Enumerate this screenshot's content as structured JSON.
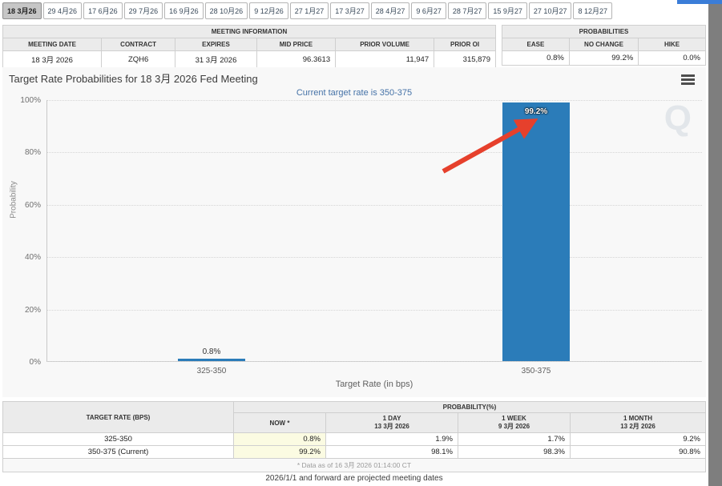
{
  "tabs": [
    {
      "label": "18 3月26",
      "active": true
    },
    {
      "label": "29 4月26",
      "active": false
    },
    {
      "label": "17 6月26",
      "active": false
    },
    {
      "label": "29 7月26",
      "active": false
    },
    {
      "label": "16 9月26",
      "active": false
    },
    {
      "label": "28 10月26",
      "active": false
    },
    {
      "label": "9 12月26",
      "active": false
    },
    {
      "label": "27 1月27",
      "active": false
    },
    {
      "label": "17 3月27",
      "active": false
    },
    {
      "label": "28 4月27",
      "active": false
    },
    {
      "label": "9 6月27",
      "active": false
    },
    {
      "label": "28 7月27",
      "active": false
    },
    {
      "label": "15 9月27",
      "active": false
    },
    {
      "label": "27 10月27",
      "active": false
    },
    {
      "label": "8 12月27",
      "active": false
    }
  ],
  "meeting_info": {
    "title": "MEETING INFORMATION",
    "headers": [
      "MEETING DATE",
      "CONTRACT",
      "EXPIRES",
      "MID PRICE",
      "PRIOR VOLUME",
      "PRIOR OI"
    ],
    "values": [
      "18 3月 2026",
      "ZQH6",
      "31 3月 2026",
      "96.3613",
      "11,947",
      "315,879"
    ]
  },
  "probabilities_summary": {
    "title": "PROBABILITIES",
    "headers": [
      "EASE",
      "NO CHANGE",
      "HIKE"
    ],
    "values": [
      "0.8%",
      "99.2%",
      "0.0%"
    ]
  },
  "chart_data": {
    "type": "bar",
    "title": "Target Rate Probabilities for 18 3月 2026 Fed Meeting",
    "subtitle": "Current target rate is 350-375",
    "categories": [
      "325-350",
      "350-375"
    ],
    "values": [
      0.8,
      99.2
    ],
    "data_labels": [
      "0.8%",
      "99.2%"
    ],
    "xlabel": "Target Rate (in bps)",
    "ylabel": "Probability",
    "ylim": [
      0,
      100
    ],
    "yticks": [
      "0%",
      "20%",
      "40%",
      "60%",
      "80%",
      "100%"
    ],
    "grid": "dotted horizontal gridlines every 20%",
    "legend": "none",
    "bar_color": "#2b7cb9",
    "annotations": [
      "red arrow pointing to the 99.2% bar label"
    ],
    "watermark": "Q"
  },
  "probability_table": {
    "corner_header": "TARGET RATE (BPS)",
    "group_header": "PROBABILITY(%)",
    "columns": [
      {
        "title": "NOW *",
        "date": ""
      },
      {
        "title": "1 DAY",
        "date": "13 3月 2026"
      },
      {
        "title": "1 WEEK",
        "date": "9 3月 2026"
      },
      {
        "title": "1 MONTH",
        "date": "13 2月 2026"
      }
    ],
    "rows": [
      {
        "target_rate": "325-350",
        "now": "0.8%",
        "one_day": "1.9%",
        "one_week": "1.7%",
        "one_month": "9.2%"
      },
      {
        "target_rate": "350-375 (Current)",
        "now": "99.2%",
        "one_day": "98.1%",
        "one_week": "98.3%",
        "one_month": "90.8%"
      }
    ],
    "footnote": "* Data as of 16 3月 2026 01:14:00 CT"
  },
  "footer_note": "2026/1/1 and forward are projected meeting dates",
  "colors": {
    "bar": "#2b7cb9",
    "subtitle_text": "#4572a7",
    "arrow": "#e6402c",
    "now_highlight": "#fbfbe2",
    "header_bg": "#ebebeb",
    "chart_bg": "#f8f8f8",
    "active_tab_bg": "#c6c6c6"
  }
}
